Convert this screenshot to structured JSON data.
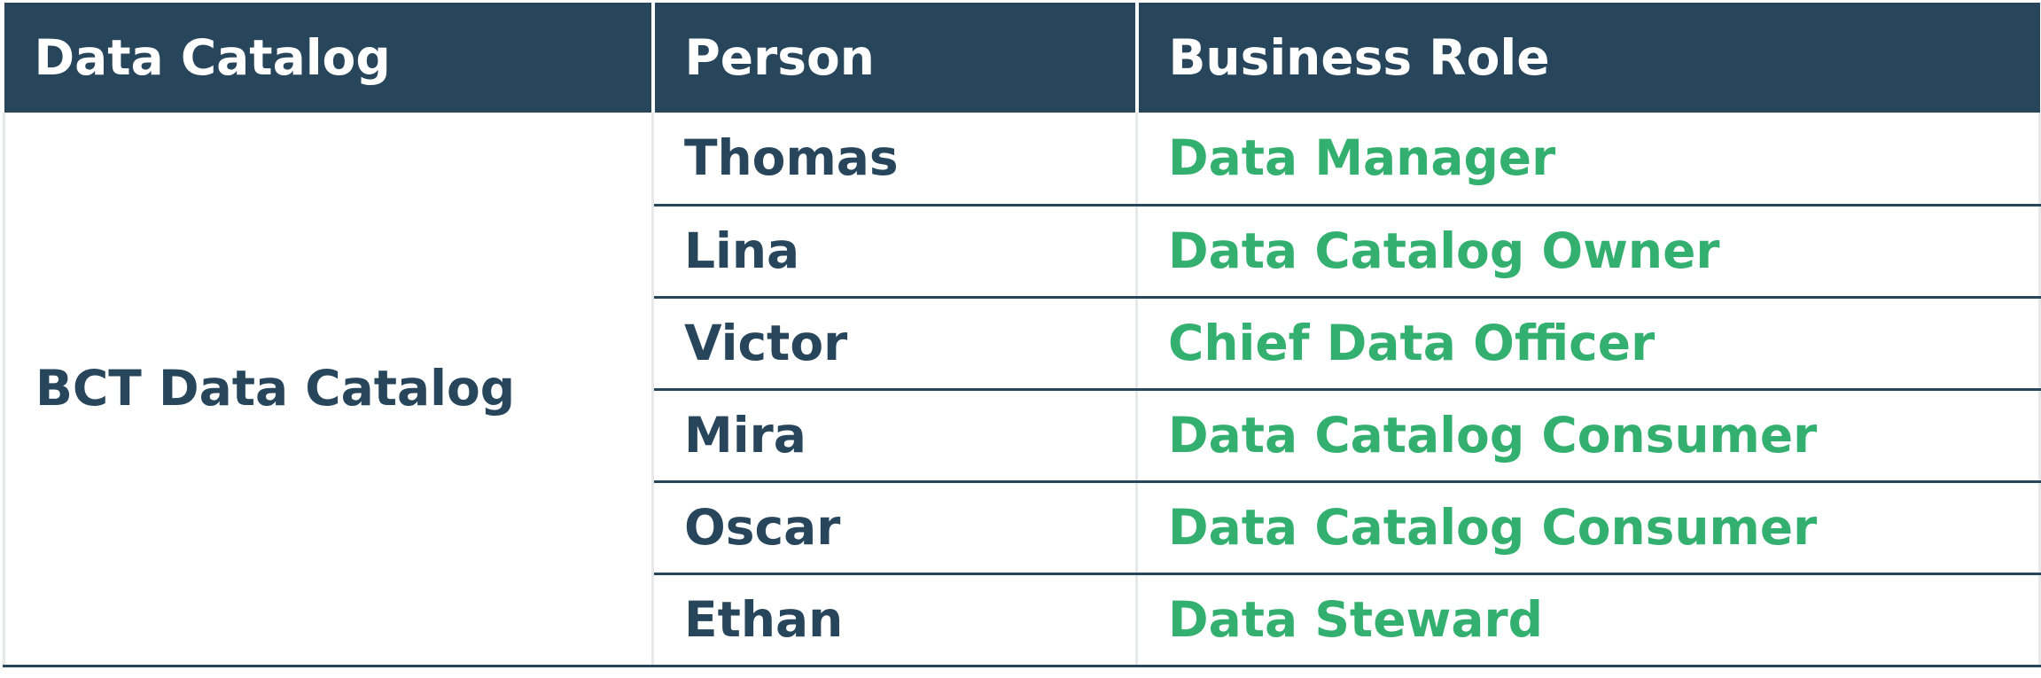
{
  "table": {
    "headers": {
      "data_catalog": "Data Catalog",
      "person": "Person",
      "business_role": "Business Role"
    },
    "catalog_name": "BCT Data Catalog",
    "rows": [
      {
        "person": "Thomas",
        "role": "Data Manager"
      },
      {
        "person": "Lina",
        "role": "Data Catalog Owner"
      },
      {
        "person": "Victor",
        "role": "Chief Data Officer"
      },
      {
        "person": "Mira",
        "role": "Data Catalog Consumer"
      },
      {
        "person": "Oscar",
        "role": "Data Catalog Consumer"
      },
      {
        "person": "Ethan",
        "role": "Data Steward"
      }
    ]
  },
  "colors": {
    "header_bg": "#27465c",
    "header_text": "#ffffff",
    "person_text": "#27465c",
    "role_text": "#33b06f"
  }
}
